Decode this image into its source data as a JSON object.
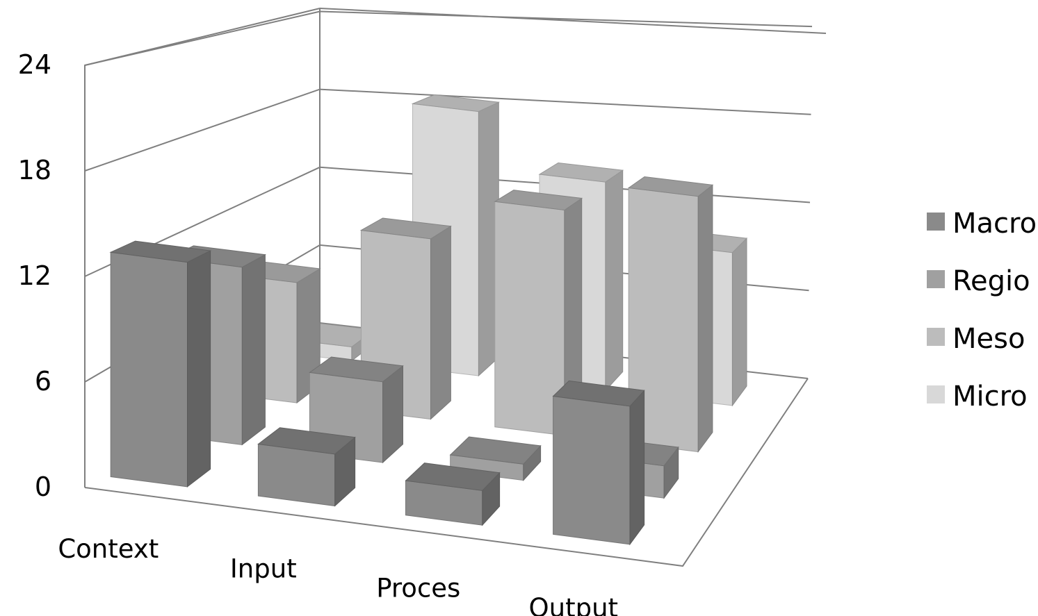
{
  "chart_data": {
    "type": "bar",
    "subtype": "3d-column",
    "title": "",
    "xlabel": "",
    "ylabel": "",
    "categories": [
      "Context",
      "Input",
      "Proces",
      "Output"
    ],
    "series": [
      {
        "name": "Macro",
        "values": [
          13,
          3,
          2,
          8
        ],
        "color": "#8a8a8a"
      },
      {
        "name": "Regio",
        "values": [
          11,
          5,
          1,
          2
        ],
        "color": "#a0a0a0"
      },
      {
        "name": "Meso",
        "values": [
          8,
          12,
          15,
          17
        ],
        "color": "#bcbcbc"
      },
      {
        "name": "Micro",
        "values": [
          1,
          19,
          15,
          11
        ],
        "color": "#d8d8d8"
      }
    ],
    "yticks": [
      "0",
      "6",
      "12",
      "18",
      "24"
    ],
    "ylim": [
      0,
      24
    ],
    "grid": true,
    "legend_position": "right"
  }
}
